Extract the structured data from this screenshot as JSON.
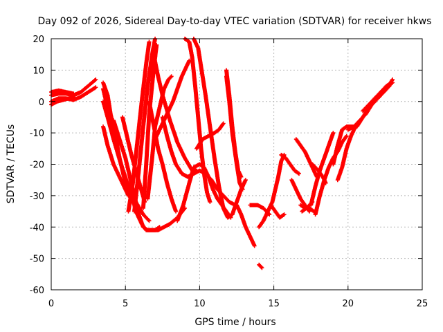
{
  "chart_data": {
    "type": "scatter",
    "title": "Day 092 of 2026, Sidereal Day-to-day VTEC variation (SDTVAR) for receiver hkws",
    "xlabel": "GPS time / hours",
    "ylabel": "SDTVAR / TECUs",
    "xlim": [
      0,
      25
    ],
    "ylim": [
      -60,
      20
    ],
    "x_ticks": [
      0,
      5,
      10,
      15,
      20,
      25
    ],
    "y_ticks": [
      -60,
      -50,
      -40,
      -30,
      -20,
      -10,
      0,
      10,
      20
    ],
    "grid": true,
    "marker": "+",
    "color": "#ff0000",
    "series": [
      {
        "points": [
          [
            0.0,
            2
          ],
          [
            0.5,
            2.5
          ],
          [
            1.0,
            2.5
          ],
          [
            1.5,
            2
          ],
          [
            2.0,
            3
          ],
          [
            2.5,
            5
          ],
          [
            3.0,
            7
          ]
        ]
      },
      {
        "points": [
          [
            0.0,
            0
          ],
          [
            0.5,
            1
          ],
          [
            1.0,
            1
          ],
          [
            1.5,
            0.5
          ],
          [
            2.0,
            1.5
          ],
          [
            2.5,
            3
          ],
          [
            3.0,
            4.5
          ]
        ]
      },
      {
        "points": [
          [
            0.0,
            -1
          ],
          [
            0.4,
            0
          ],
          [
            0.8,
            0.5
          ],
          [
            1.2,
            1
          ],
          [
            1.6,
            1
          ]
        ]
      },
      {
        "points": [
          [
            0.0,
            3
          ],
          [
            0.5,
            3.5
          ],
          [
            1.0,
            3
          ],
          [
            1.5,
            2.5
          ]
        ]
      },
      {
        "points": [
          [
            3.5,
            6
          ],
          [
            3.8,
            2
          ],
          [
            4.0,
            -4
          ],
          [
            4.3,
            -10
          ],
          [
            4.6,
            -18
          ],
          [
            4.9,
            -24
          ],
          [
            5.2,
            -28
          ],
          [
            5.5,
            -32
          ],
          [
            5.8,
            -34
          ]
        ]
      },
      {
        "points": [
          [
            3.5,
            4
          ],
          [
            3.8,
            -2
          ],
          [
            4.2,
            -10
          ],
          [
            4.6,
            -18
          ],
          [
            5.0,
            -25
          ],
          [
            5.4,
            -30
          ],
          [
            5.8,
            -36
          ],
          [
            6.1,
            -39
          ],
          [
            6.4,
            -41
          ],
          [
            6.7,
            -41
          ],
          [
            7.0,
            -41
          ],
          [
            7.3,
            -40
          ]
        ]
      },
      {
        "points": [
          [
            3.5,
            0
          ],
          [
            3.8,
            -5
          ],
          [
            4.2,
            -12
          ],
          [
            4.7,
            -20
          ],
          [
            5.2,
            -27
          ],
          [
            5.7,
            -32
          ],
          [
            6.2,
            -36
          ],
          [
            6.6,
            -38
          ]
        ]
      },
      {
        "points": [
          [
            3.5,
            -8
          ],
          [
            3.8,
            -14
          ],
          [
            4.2,
            -20
          ],
          [
            4.6,
            -24
          ],
          [
            4.9,
            -27
          ],
          [
            5.2,
            -30
          ]
        ]
      },
      {
        "points": [
          [
            4.2,
            -6
          ],
          [
            4.6,
            -12
          ],
          [
            5.0,
            -18
          ],
          [
            5.3,
            -24
          ],
          [
            5.6,
            -30
          ],
          [
            5.9,
            -36
          ],
          [
            6.2,
            -40
          ],
          [
            6.5,
            -41
          ],
          [
            6.9,
            -41
          ],
          [
            7.2,
            -41
          ],
          [
            7.6,
            -40
          ],
          [
            8.0,
            -39
          ],
          [
            8.5,
            -37
          ],
          [
            9.0,
            -34
          ]
        ]
      },
      {
        "points": [
          [
            4.8,
            -5
          ],
          [
            5.1,
            -11
          ],
          [
            5.4,
            -17
          ],
          [
            5.7,
            -22
          ],
          [
            6.0,
            -27
          ],
          [
            6.3,
            -32
          ]
        ]
      },
      {
        "points": [
          [
            5.2,
            -35
          ],
          [
            5.5,
            -26
          ],
          [
            5.8,
            -13
          ],
          [
            6.1,
            0
          ],
          [
            6.4,
            12
          ],
          [
            6.6,
            19
          ]
        ]
      },
      {
        "points": [
          [
            5.6,
            -35
          ],
          [
            5.9,
            -22
          ],
          [
            6.2,
            -8
          ],
          [
            6.5,
            5
          ],
          [
            6.8,
            15
          ],
          [
            7.0,
            20
          ]
        ]
      },
      {
        "points": [
          [
            6.2,
            -34
          ],
          [
            6.4,
            -20
          ],
          [
            6.6,
            -4
          ],
          [
            6.9,
            10
          ],
          [
            7.1,
            18
          ]
        ]
      },
      {
        "points": [
          [
            6.5,
            -31
          ],
          [
            6.8,
            -18
          ],
          [
            7.0,
            -8
          ],
          [
            7.3,
            -2
          ],
          [
            7.6,
            4
          ],
          [
            7.9,
            7
          ],
          [
            8.1,
            8
          ]
        ]
      },
      {
        "points": [
          [
            6.6,
            0
          ],
          [
            6.8,
            -5
          ],
          [
            7.0,
            -10
          ],
          [
            7.2,
            -15
          ],
          [
            7.5,
            -20
          ],
          [
            7.8,
            -26
          ],
          [
            8.1,
            -31
          ],
          [
            8.4,
            -35
          ]
        ]
      },
      {
        "points": [
          [
            7.0,
            -12
          ],
          [
            7.4,
            -8
          ],
          [
            7.8,
            -4
          ],
          [
            8.2,
            0
          ],
          [
            8.5,
            4
          ],
          [
            8.8,
            8
          ],
          [
            9.1,
            11
          ],
          [
            9.3,
            13
          ]
        ]
      },
      {
        "points": [
          [
            6.9,
            15
          ],
          [
            7.2,
            8
          ],
          [
            7.5,
            2
          ],
          [
            8.0,
            -6
          ],
          [
            8.5,
            -13
          ],
          [
            9.0,
            -18
          ],
          [
            9.5,
            -22
          ],
          [
            9.8,
            -22
          ]
        ]
      },
      {
        "points": [
          [
            7.5,
            -5
          ],
          [
            7.8,
            -11
          ],
          [
            8.1,
            -16
          ],
          [
            8.4,
            -20
          ],
          [
            8.8,
            -23
          ],
          [
            9.2,
            -24
          ],
          [
            9.6,
            -23
          ],
          [
            10.0,
            -22
          ],
          [
            10.4,
            -23
          ],
          [
            10.8,
            -25
          ],
          [
            11.2,
            -28
          ],
          [
            11.6,
            -30
          ],
          [
            12.0,
            -32
          ],
          [
            12.4,
            -33
          ]
        ]
      },
      {
        "points": [
          [
            8.5,
            -38
          ],
          [
            8.9,
            -33
          ],
          [
            9.3,
            -26
          ],
          [
            9.6,
            -21
          ],
          [
            10.0,
            -20
          ],
          [
            10.3,
            -21
          ],
          [
            10.6,
            -24
          ],
          [
            10.9,
            -28
          ],
          [
            11.2,
            -31
          ],
          [
            11.5,
            -33
          ],
          [
            11.8,
            -35
          ],
          [
            12.1,
            -37
          ]
        ]
      },
      {
        "points": [
          [
            9.0,
            20
          ],
          [
            9.3,
            19
          ],
          [
            9.5,
            14
          ],
          [
            9.7,
            5
          ],
          [
            9.9,
            -5
          ],
          [
            10.1,
            -15
          ],
          [
            10.3,
            -23
          ],
          [
            10.5,
            -29
          ],
          [
            10.7,
            -32
          ]
        ]
      },
      {
        "points": [
          [
            9.6,
            20
          ],
          [
            9.9,
            17
          ],
          [
            10.1,
            11
          ],
          [
            10.4,
            2
          ],
          [
            10.7,
            -8
          ],
          [
            11.0,
            -18
          ],
          [
            11.3,
            -27
          ],
          [
            11.6,
            -34
          ],
          [
            11.9,
            -37
          ],
          [
            12.2,
            -36
          ]
        ]
      },
      {
        "points": [
          [
            9.8,
            -15
          ],
          [
            10.2,
            -12
          ],
          [
            10.6,
            -11
          ],
          [
            11.0,
            -10
          ],
          [
            11.3,
            -9
          ],
          [
            11.6,
            -7
          ]
        ]
      },
      {
        "points": [
          [
            11.8,
            10
          ],
          [
            12.0,
            2
          ],
          [
            12.2,
            -8
          ],
          [
            12.4,
            -16
          ],
          [
            12.6,
            -22
          ],
          [
            12.8,
            -24
          ]
        ]
      },
      {
        "points": [
          [
            11.8,
            8
          ],
          [
            12.0,
            0
          ],
          [
            12.2,
            -10
          ],
          [
            12.5,
            -20
          ],
          [
            12.7,
            -26
          ],
          [
            12.9,
            -28
          ]
        ]
      },
      {
        "points": [
          [
            12.2,
            -36
          ],
          [
            12.5,
            -32
          ],
          [
            12.8,
            -28
          ],
          [
            13.1,
            -25
          ]
        ]
      },
      {
        "points": [
          [
            12.5,
            -33
          ],
          [
            12.8,
            -36
          ],
          [
            13.1,
            -40
          ],
          [
            13.4,
            -43
          ],
          [
            13.7,
            -46
          ]
        ]
      },
      {
        "points": [
          [
            13.4,
            -33
          ],
          [
            13.9,
            -33
          ],
          [
            14.3,
            -34
          ],
          [
            14.7,
            -36
          ]
        ]
      },
      {
        "points": [
          [
            14.0,
            -52
          ],
          [
            14.2,
            -53
          ]
        ]
      },
      {
        "points": [
          [
            14.0,
            -40
          ],
          [
            14.3,
            -38
          ],
          [
            14.6,
            -35
          ],
          [
            14.9,
            -32
          ],
          [
            15.1,
            -28
          ],
          [
            15.3,
            -24
          ],
          [
            15.5,
            -19
          ],
          [
            15.7,
            -17
          ]
        ]
      },
      {
        "points": [
          [
            14.8,
            -33
          ],
          [
            15.1,
            -35
          ],
          [
            15.4,
            -37
          ],
          [
            15.7,
            -36
          ]
        ]
      },
      {
        "points": [
          [
            15.5,
            -17
          ],
          [
            15.8,
            -18
          ],
          [
            16.1,
            -20
          ],
          [
            16.4,
            -22
          ],
          [
            16.7,
            -23
          ]
        ]
      },
      {
        "points": [
          [
            16.2,
            -25
          ],
          [
            16.5,
            -28
          ],
          [
            16.8,
            -31
          ],
          [
            17.1,
            -33
          ],
          [
            17.4,
            -35
          ]
        ]
      },
      {
        "points": [
          [
            16.5,
            -12
          ],
          [
            16.8,
            -14
          ],
          [
            17.1,
            -16
          ],
          [
            17.4,
            -19
          ],
          [
            17.7,
            -22
          ],
          [
            17.9,
            -24
          ]
        ]
      },
      {
        "points": [
          [
            16.8,
            -33
          ],
          [
            17.1,
            -34
          ],
          [
            17.4,
            -34
          ],
          [
            17.7,
            -35
          ]
        ]
      },
      {
        "points": [
          [
            16.9,
            -35
          ],
          [
            17.2,
            -34
          ],
          [
            17.4,
            -33
          ],
          [
            17.6,
            -32
          ]
        ]
      },
      {
        "points": [
          [
            17.5,
            -33
          ],
          [
            17.8,
            -27
          ],
          [
            18.1,
            -22
          ],
          [
            18.4,
            -18
          ],
          [
            18.7,
            -14
          ],
          [
            19.0,
            -10
          ]
        ]
      },
      {
        "points": [
          [
            17.8,
            -36
          ],
          [
            18.1,
            -30
          ],
          [
            18.4,
            -25
          ],
          [
            18.7,
            -21
          ],
          [
            19.0,
            -18
          ],
          [
            19.3,
            -16
          ],
          [
            19.6,
            -13
          ],
          [
            19.9,
            -11
          ]
        ]
      },
      {
        "points": [
          [
            17.6,
            -20
          ],
          [
            18.0,
            -22
          ],
          [
            18.3,
            -24
          ],
          [
            18.5,
            -26
          ]
        ]
      },
      {
        "points": [
          [
            19.3,
            -25
          ],
          [
            19.6,
            -21
          ],
          [
            19.9,
            -15
          ],
          [
            20.2,
            -11
          ],
          [
            20.5,
            -8
          ]
        ]
      },
      {
        "points": [
          [
            19.0,
            -20
          ],
          [
            19.3,
            -14
          ],
          [
            19.6,
            -9
          ],
          [
            19.9,
            -8
          ],
          [
            20.2,
            -8
          ],
          [
            20.5,
            -8
          ]
        ]
      },
      {
        "points": [
          [
            20.0,
            -9
          ],
          [
            20.4,
            -8
          ],
          [
            20.8,
            -6
          ],
          [
            21.2,
            -4
          ],
          [
            21.6,
            -1
          ],
          [
            22.0,
            1
          ],
          [
            22.4,
            3
          ],
          [
            22.8,
            5
          ]
        ]
      },
      {
        "points": [
          [
            20.6,
            -8
          ],
          [
            21.0,
            -5
          ],
          [
            21.4,
            -2
          ],
          [
            21.8,
            0
          ],
          [
            22.2,
            2
          ],
          [
            22.6,
            4
          ],
          [
            23.0,
            7
          ]
        ]
      },
      {
        "points": [
          [
            21.0,
            -3
          ],
          [
            21.4,
            -1
          ],
          [
            21.8,
            1
          ],
          [
            22.2,
            3
          ],
          [
            22.6,
            5
          ],
          [
            23.0,
            6
          ]
        ]
      }
    ]
  }
}
